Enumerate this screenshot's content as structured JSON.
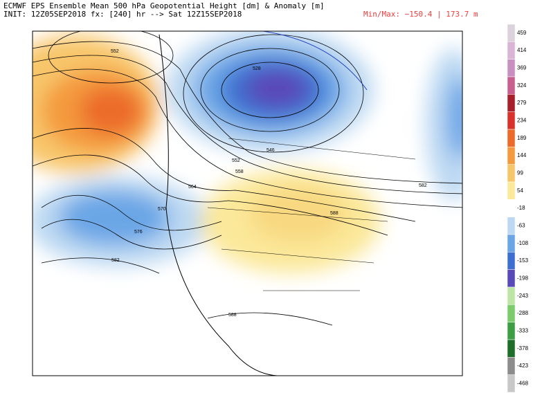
{
  "header": {
    "title": "ECMWF EPS Ensemble Mean 500 hPa Geopotential Height [dm] & Anomaly [m]",
    "init": "INIT: 12Z05SEP2018 fx: [240] hr --> Sat 12Z15SEP2018",
    "minmax": "Min/Max: −150.4 | 173.7 m"
  },
  "colorbar": {
    "labels": [
      459,
      414,
      369,
      324,
      279,
      234,
      189,
      144,
      99,
      54,
      -18,
      -63,
      -108,
      -153,
      -198,
      -243,
      -288,
      -333,
      -378,
      -423,
      -468
    ],
    "colors": [
      "#dcd2dc",
      "#d9b4d4",
      "#c98fc0",
      "#c7608e",
      "#a8202c",
      "#d8322a",
      "#ec6a2a",
      "#f49a3e",
      "#f8c66a",
      "#fbe89a",
      "#ffffff",
      "#bcd8f2",
      "#6aa6e6",
      "#3d6fd0",
      "#5a4ab8",
      "#bde6a6",
      "#7dcc6c",
      "#3d9e44",
      "#1e6e2a",
      "#8c8c8c",
      "#c8c8c8"
    ]
  },
  "contour_labels": [
    "552",
    "528",
    "546",
    "552",
    "558",
    "564",
    "570",
    "576",
    "582",
    "582",
    "588",
    "588"
  ]
}
